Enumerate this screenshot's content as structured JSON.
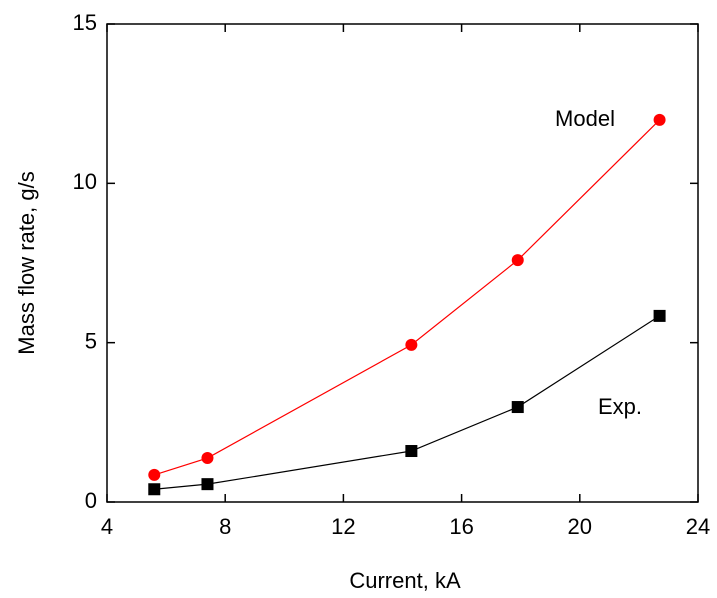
{
  "chart_data": {
    "type": "line",
    "x_label": "Current, kA",
    "y_label": "Mass flow rate, g/s",
    "x": [
      5.6,
      7.4,
      14.3,
      17.9,
      22.7
    ],
    "series": [
      {
        "name": "Model",
        "color": "#ff0000",
        "marker": "circle",
        "values": [
          0.85,
          1.38,
          4.93,
          7.59,
          11.99
        ]
      },
      {
        "name": "Exp.",
        "color": "#000000",
        "marker": "square",
        "values": [
          0.4,
          0.56,
          1.6,
          2.98,
          5.84
        ]
      }
    ],
    "xlim": [
      4,
      24
    ],
    "xticks": [
      4,
      8,
      12,
      16,
      20,
      24
    ],
    "ylim": [
      0,
      15
    ],
    "yticks": [
      0,
      5,
      10,
      15
    ],
    "grid": false
  }
}
